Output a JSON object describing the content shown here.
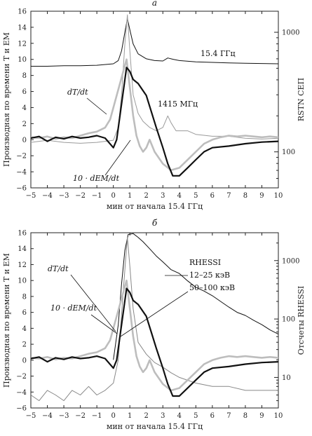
{
  "chart_data": [
    {
      "panel_label": "а",
      "type": "line",
      "xlabel": "мин от начала 15.4 ГГц",
      "ylabel_left": "Производная по времени T и EM",
      "ylabel_right": "RSTN СЕП",
      "xlim": [
        -5,
        10
      ],
      "ylim_left": [
        -6,
        16
      ],
      "ylim_right_log": [
        50,
        1500
      ],
      "x_ticks": [
        "−5",
        "−4",
        "−3",
        "−2",
        "−1",
        "0",
        "1",
        "2",
        "3",
        "4",
        "5",
        "6",
        "7",
        "8",
        "9",
        "10"
      ],
      "y_ticks_left": [
        "−6",
        "−4",
        "−2",
        "0",
        "2",
        "4",
        "6",
        "8",
        "10",
        "12",
        "14",
        "16"
      ],
      "y_ticks_right": [
        "100",
        "1000"
      ],
      "annotations": [
        "dT/dt",
        "10 · dEM/dt",
        "1415 МГц",
        "15.4 ГГц"
      ],
      "series": [
        {
          "name": "15.4 ГГц",
          "axis": "right",
          "color": "#111111",
          "x": [
            -5,
            -4,
            -3,
            -2,
            -1,
            0,
            0.3,
            0.5,
            0.7,
            0.85,
            1.0,
            1.2,
            1.5,
            2.0,
            2.5,
            3.0,
            3.3,
            3.6,
            4.0,
            5.0,
            6.0,
            7.0,
            8.0,
            9.0,
            10.0
          ],
          "values": [
            520,
            520,
            525,
            525,
            530,
            545,
            580,
            700,
            1000,
            1300,
            1050,
            800,
            660,
            600,
            580,
            575,
            610,
            595,
            580,
            565,
            560,
            555,
            550,
            548,
            545
          ]
        },
        {
          "name": "1415 МГц",
          "axis": "right",
          "color": "#9a9a9a",
          "x": [
            -5,
            -4,
            -3,
            -2,
            -1,
            0,
            0.3,
            0.5,
            0.7,
            0.85,
            1.0,
            1.2,
            1.5,
            1.8,
            2.2,
            2.6,
            3.0,
            3.3,
            3.5,
            3.8,
            4.5,
            5.0,
            6.0,
            7.0,
            8.0,
            9.0,
            10.0
          ],
          "values": [
            120,
            125,
            120,
            118,
            120,
            125,
            160,
            300,
            800,
            1400,
            700,
            300,
            210,
            180,
            160,
            150,
            160,
            200,
            175,
            150,
            150,
            140,
            135,
            135,
            130,
            128,
            130
          ]
        },
        {
          "name": "dT/dt",
          "axis": "left",
          "color": "#bdbdbd",
          "x": [
            -5,
            -4.5,
            -4,
            -3.5,
            -3,
            -2.5,
            -2,
            -1.5,
            -1,
            -0.5,
            -0.2,
            0,
            0.2,
            0.4,
            0.6,
            0.8,
            1.0,
            1.2,
            1.4,
            1.6,
            1.8,
            2.0,
            2.2,
            2.5,
            3.0,
            3.5,
            4.0,
            4.5,
            5.0,
            5.5,
            6.0,
            6.5,
            7.0,
            7.5,
            8.0,
            8.5,
            9.0,
            9.5,
            10.0
          ],
          "values": [
            0.3,
            0.2,
            0.4,
            0.1,
            0.3,
            0.2,
            0.5,
            0.8,
            1.0,
            1.5,
            2.5,
            4.0,
            5.5,
            7.0,
            8.5,
            10.0,
            6.5,
            3.0,
            0.5,
            -0.8,
            -1.5,
            -1.0,
            0.0,
            -1.5,
            -3.0,
            -3.8,
            -3.5,
            -2.5,
            -1.5,
            -0.5,
            0.0,
            0.3,
            0.5,
            0.4,
            0.5,
            0.4,
            0.3,
            0.4,
            0.3
          ]
        },
        {
          "name": "10 · dEM/dt",
          "axis": "left",
          "color": "#111111",
          "x": [
            -5,
            -4.5,
            -4,
            -3.5,
            -3,
            -2.5,
            -2,
            -1.5,
            -1,
            -0.5,
            0,
            0.2,
            0.4,
            0.6,
            0.8,
            1.0,
            1.2,
            1.5,
            2.0,
            2.3,
            2.6,
            3.0,
            3.3,
            3.6,
            4.0,
            4.5,
            5.0,
            5.5,
            6.0,
            7.0,
            8.0,
            9.0,
            10.0
          ],
          "values": [
            0.2,
            0.4,
            -0.2,
            0.3,
            0.1,
            0.4,
            0.2,
            0.3,
            0.5,
            0.2,
            -1.0,
            0.0,
            3.0,
            6.0,
            9.0,
            8.5,
            7.5,
            7.0,
            5.5,
            3.5,
            1.5,
            -1.0,
            -3.0,
            -4.5,
            -4.5,
            -3.5,
            -2.5,
            -1.5,
            -1.0,
            -0.8,
            -0.5,
            -0.3,
            -0.2
          ]
        }
      ]
    },
    {
      "panel_label": "б",
      "type": "line",
      "xlabel": "мин от начала 15.4 ГГц",
      "ylabel_left": "Производная по времени T и EM",
      "ylabel_right": "Отсчеты RHESSI",
      "xlim": [
        -5,
        10
      ],
      "ylim_left": [
        -6,
        16
      ],
      "ylim_right_log": [
        3,
        3000
      ],
      "x_ticks": [
        "−5",
        "−4",
        "−3",
        "−2",
        "−1",
        "0",
        "1",
        "2",
        "3",
        "4",
        "5",
        "6",
        "7",
        "8",
        "9",
        "10"
      ],
      "y_ticks_left": [
        "−6",
        "−4",
        "−2",
        "0",
        "2",
        "4",
        "6",
        "8",
        "10",
        "12",
        "14",
        "16"
      ],
      "y_ticks_right": [
        "10",
        "100",
        "1000"
      ],
      "annotations": [
        "dT/dt",
        "10 · dEM/dt",
        "RHESSI",
        "12–25 кэВ",
        "50–100 кэВ"
      ],
      "series": [
        {
          "name": "12–25 кэВ",
          "axis": "right",
          "color": "#111111",
          "x": [
            0.0,
            0.3,
            0.5,
            0.7,
            0.9,
            1.2,
            1.5,
            1.8,
            2.2,
            2.6,
            3.0,
            3.5,
            4.0,
            4.5,
            5.0,
            5.5,
            6.0,
            6.5,
            7.0,
            7.5,
            8.0,
            8.5,
            9.0,
            9.5,
            10.0
          ],
          "values": [
            20,
            80,
            400,
            1500,
            2800,
            2900,
            2500,
            2100,
            1600,
            1200,
            950,
            700,
            600,
            450,
            350,
            300,
            250,
            200,
            160,
            130,
            115,
            95,
            80,
            65,
            55
          ]
        },
        {
          "name": "50–100 кэВ",
          "axis": "right",
          "color": "#888888",
          "x": [
            -5,
            -4.5,
            -4,
            -3.5,
            -3,
            -2.5,
            -2,
            -1.5,
            -1,
            -0.5,
            0,
            0.3,
            0.5,
            0.7,
            0.85,
            1.0,
            1.2,
            1.5,
            2.0,
            2.5,
            3.0,
            3.5,
            4.0,
            5.0,
            6.0,
            7.0,
            8.0,
            9.0,
            10.0
          ],
          "values": [
            5,
            4,
            6,
            5,
            4,
            6,
            5,
            7,
            5,
            6,
            8,
            20,
            120,
            700,
            2500,
            800,
            150,
            40,
            25,
            18,
            15,
            12,
            10,
            8,
            7,
            7,
            6,
            6,
            6
          ]
        },
        {
          "name": "dT/dt",
          "axis": "left",
          "color": "#bdbdbd",
          "x": [
            -5,
            -4.5,
            -4,
            -3.5,
            -3,
            -2.5,
            -2,
            -1.5,
            -1,
            -0.5,
            -0.2,
            0,
            0.2,
            0.4,
            0.6,
            0.8,
            1.0,
            1.2,
            1.4,
            1.6,
            1.8,
            2.0,
            2.2,
            2.5,
            3.0,
            3.5,
            4.0,
            4.5,
            5.0,
            5.5,
            6.0,
            6.5,
            7.0,
            7.5,
            8.0,
            8.5,
            9.0,
            9.5,
            10.0
          ],
          "values": [
            0.3,
            0.2,
            0.4,
            0.1,
            0.3,
            0.2,
            0.5,
            0.8,
            1.0,
            1.5,
            2.5,
            4.0,
            5.5,
            7.0,
            8.5,
            10.0,
            6.5,
            3.0,
            0.5,
            -0.8,
            -1.5,
            -1.0,
            0.0,
            -1.5,
            -3.0,
            -3.8,
            -3.5,
            -2.5,
            -1.5,
            -0.5,
            0.0,
            0.3,
            0.5,
            0.4,
            0.5,
            0.4,
            0.3,
            0.4,
            0.3
          ]
        },
        {
          "name": "10 · dEM/dt",
          "axis": "left",
          "color": "#111111",
          "x": [
            -5,
            -4.5,
            -4,
            -3.5,
            -3,
            -2.5,
            -2,
            -1.5,
            -1,
            -0.5,
            0,
            0.2,
            0.4,
            0.6,
            0.8,
            1.0,
            1.2,
            1.5,
            2.0,
            2.3,
            2.6,
            3.0,
            3.3,
            3.6,
            4.0,
            4.5,
            5.0,
            5.5,
            6.0,
            7.0,
            8.0,
            9.0,
            10.0
          ],
          "values": [
            0.2,
            0.4,
            -0.2,
            0.3,
            0.1,
            0.4,
            0.2,
            0.3,
            0.5,
            0.2,
            -1.0,
            0.0,
            3.0,
            6.0,
            9.0,
            8.5,
            7.5,
            7.0,
            5.5,
            3.5,
            1.5,
            -1.0,
            -3.0,
            -4.5,
            -4.5,
            -3.5,
            -2.5,
            -1.5,
            -1.0,
            -0.8,
            -0.5,
            -0.3,
            -0.2
          ]
        }
      ]
    }
  ]
}
